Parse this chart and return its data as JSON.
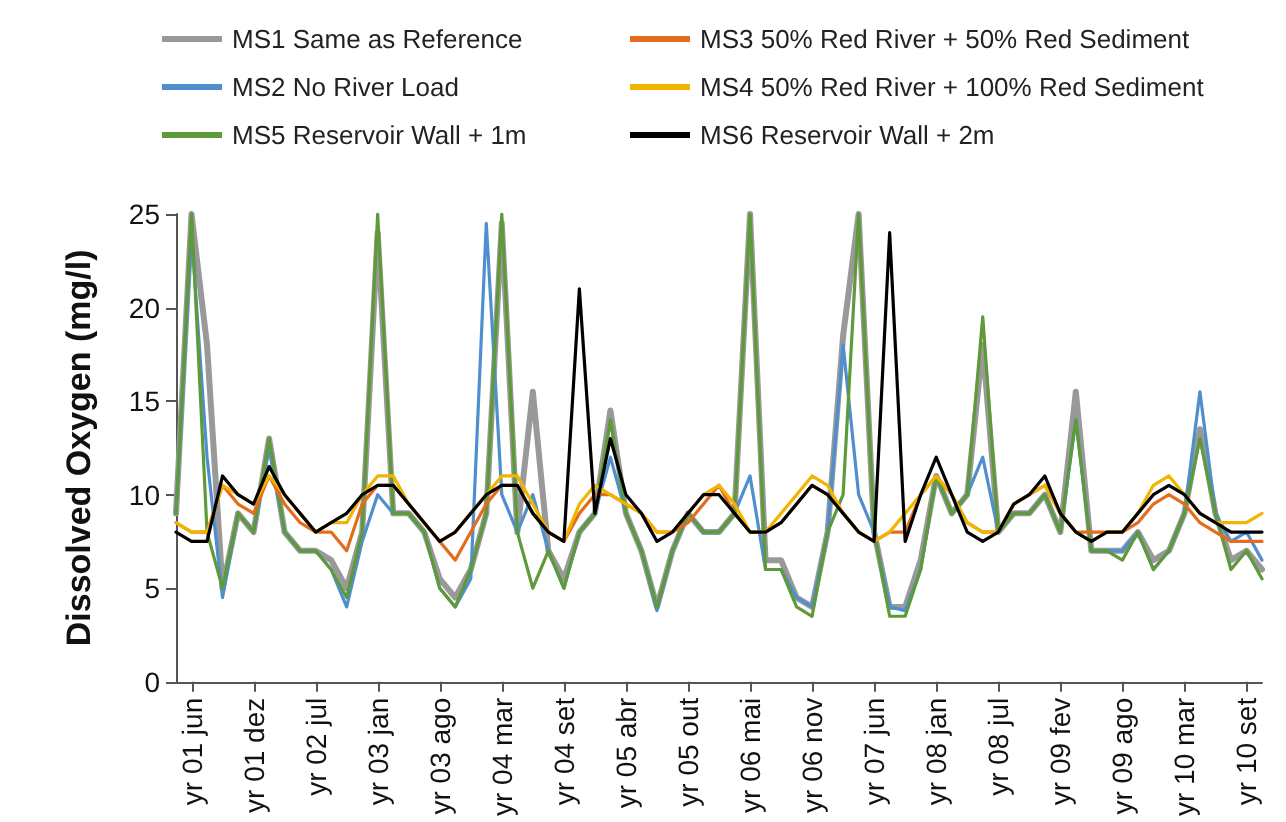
{
  "chart_data": {
    "type": "line",
    "ylabel": "Dissolved Oxygen (mg/l)",
    "ylim": [
      0,
      25
    ],
    "yticks": [
      0,
      5,
      10,
      15,
      20,
      25
    ],
    "grid": false,
    "legend": "top",
    "marker": "none",
    "line_style": "solid",
    "categories": [
      null,
      "yr 01 jun",
      null,
      null,
      null,
      "yr 01 dez",
      null,
      null,
      null,
      "yr 02 jul",
      null,
      null,
      null,
      "yr 03 jan",
      null,
      null,
      null,
      "yr 03 ago",
      null,
      null,
      null,
      "yr 04 mar",
      null,
      null,
      null,
      "yr 04 set",
      null,
      null,
      null,
      "yr 05 abr",
      null,
      null,
      null,
      "yr 05 out",
      null,
      null,
      null,
      "yr 06 mai",
      null,
      null,
      null,
      "yr 06 nov",
      null,
      null,
      null,
      "yr 07 jun",
      null,
      null,
      null,
      "yr 08 jan",
      null,
      null,
      null,
      "yr 08 jul",
      null,
      null,
      null,
      "yr 09 fev",
      null,
      null,
      null,
      "yr 09 ago",
      null,
      null,
      null,
      "yr 10 mar",
      null,
      null,
      null,
      "yr 10 set",
      null
    ],
    "series": [
      {
        "name": "MS1 Same as Reference",
        "color": "#999999",
        "values": [
          9,
          25,
          18,
          5,
          9,
          8,
          13,
          8,
          7,
          7,
          6.5,
          5,
          8,
          24,
          9,
          9,
          8,
          5.5,
          4.5,
          6,
          9,
          24.5,
          8,
          15.5,
          7,
          5.5,
          8,
          9,
          14.5,
          9,
          7,
          4,
          7,
          9,
          8,
          8,
          9,
          25,
          6.5,
          6.5,
          4.5,
          4,
          8,
          18.5,
          25,
          8,
          4,
          4,
          6.5,
          11,
          9,
          10,
          18,
          8,
          9,
          9,
          10,
          8,
          15.5,
          7,
          7,
          7,
          8,
          6.5,
          7,
          9,
          13.5,
          9,
          6.5,
          7,
          6
        ]
      },
      {
        "name": "MS2 No River Load",
        "color": "#4f8fd0",
        "values": [
          9,
          24,
          12,
          4.5,
          9,
          8,
          12.5,
          8,
          7,
          7,
          6,
          4,
          7.5,
          10,
          9,
          9,
          8,
          5,
          4,
          5.5,
          24.5,
          10,
          8,
          10,
          7,
          5,
          8,
          9,
          12,
          9,
          7,
          3.8,
          7,
          9,
          8,
          8,
          9,
          11,
          6,
          6,
          4.5,
          4,
          8,
          18,
          10,
          8,
          4,
          3.8,
          6,
          11,
          9,
          10,
          12,
          8,
          9,
          9,
          10,
          8,
          14,
          7,
          7,
          7,
          8,
          6,
          7,
          9,
          15.5,
          9,
          7.5,
          8,
          6.5
        ]
      },
      {
        "name": "MS5 Reservoir Wall + 1m",
        "color": "#5e9a3a",
        "values": [
          9,
          25,
          8,
          5,
          9,
          8,
          13,
          8,
          7,
          7,
          6,
          4.5,
          8,
          25,
          9,
          9,
          8,
          5,
          4,
          6,
          9,
          25,
          8,
          5,
          7,
          5,
          8,
          9,
          14,
          9,
          7,
          4,
          7,
          9,
          8,
          8,
          9,
          25,
          6,
          6,
          4,
          3.5,
          8,
          10,
          25,
          8,
          3.5,
          3.5,
          6,
          11,
          9,
          10,
          19.5,
          8,
          9,
          9,
          10,
          8,
          14,
          7,
          7,
          6.5,
          8,
          6,
          7,
          9,
          13,
          9,
          6,
          7,
          5.5
        ]
      },
      {
        "name": "MS3 50% Red River + 50% Red Sediment",
        "color": "#e36c1e",
        "values": [
          8.5,
          8,
          8,
          10.5,
          9.5,
          9,
          11,
          9.5,
          8.5,
          8,
          8,
          7,
          9.5,
          10.5,
          10.5,
          9.5,
          8.5,
          7.5,
          6.5,
          8,
          9.5,
          10.5,
          10.5,
          9,
          8,
          7.5,
          9,
          10,
          10,
          9.5,
          9,
          8,
          8,
          8.5,
          9.5,
          10.5,
          9,
          8,
          8,
          8.5,
          9.5,
          10.5,
          10,
          9,
          8,
          7.5,
          8,
          8,
          10,
          11,
          10,
          8.5,
          8,
          8,
          9.5,
          10,
          10.5,
          9,
          8,
          8,
          8,
          8,
          8.5,
          9.5,
          10,
          9.5,
          8.5,
          8,
          7.5,
          7.5,
          7.5
        ]
      },
      {
        "name": "MS4 50% Red River + 100% Red Sediment",
        "color": "#f2b400",
        "values": [
          8.5,
          8,
          8,
          10.5,
          10,
          9.5,
          11,
          10,
          9,
          8,
          8.5,
          8.5,
          10,
          11,
          11,
          9.5,
          8.5,
          7.5,
          8,
          9,
          10,
          11,
          11,
          9.5,
          8,
          7.5,
          9.5,
          10.5,
          10,
          9.5,
          9,
          8,
          8,
          9,
          10,
          10.5,
          9.5,
          8,
          8,
          9,
          10,
          11,
          10.5,
          9,
          8,
          7.5,
          8,
          9,
          10,
          11,
          10,
          8.5,
          8,
          8,
          9.5,
          10,
          10.5,
          9,
          8,
          7.5,
          8,
          8,
          9,
          10.5,
          11,
          10,
          9,
          8.5,
          8.5,
          8.5,
          9
        ]
      },
      {
        "name": "MS6 Reservoir Wall + 2m",
        "color": "#000000",
        "values": [
          8,
          7.5,
          7.5,
          11,
          10,
          9.5,
          11.5,
          10,
          9,
          8,
          8.5,
          9,
          10,
          10.5,
          10.5,
          9.5,
          8.5,
          7.5,
          8,
          9,
          10,
          10.5,
          10.5,
          9,
          8,
          7.5,
          21,
          9,
          13,
          10,
          9,
          7.5,
          8,
          9,
          10,
          10,
          9,
          8,
          8,
          8.5,
          9.5,
          10.5,
          10,
          9,
          8,
          7.5,
          24,
          7.5,
          10,
          12,
          10,
          8,
          7.5,
          8,
          9.5,
          10,
          11,
          9,
          8,
          7.5,
          8,
          8,
          9,
          10,
          10.5,
          10,
          9,
          8.5,
          8,
          8,
          8
        ]
      }
    ]
  }
}
